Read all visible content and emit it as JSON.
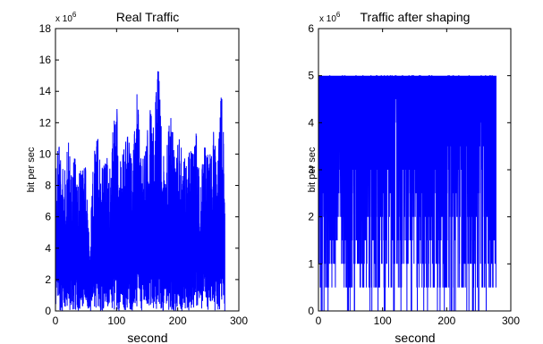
{
  "chart_data": [
    {
      "type": "line",
      "title": "Real Traffic",
      "xlabel": "second",
      "ylabel": "bit per sec",
      "y_multiplier": "x 10",
      "y_multiplier_exp": "6",
      "xlim": [
        0,
        300
      ],
      "ylim": [
        0,
        18
      ],
      "xticks": [
        "0",
        "100",
        "200",
        "300"
      ],
      "yticks": [
        "0",
        "2",
        "4",
        "6",
        "8",
        "10",
        "12",
        "14",
        "16",
        "18"
      ],
      "grid": false,
      "color": "#0000ff",
      "series": [
        {
          "x": [
            0,
            7,
            14,
            21,
            28,
            35,
            42,
            49,
            56,
            63,
            70,
            77,
            84,
            91,
            98,
            105,
            112,
            119,
            126,
            133,
            140,
            147,
            154,
            161,
            168,
            175,
            182,
            189,
            196,
            203,
            210,
            217,
            224,
            231,
            238,
            245,
            252,
            259,
            266,
            273,
            277
          ],
          "peaks": [
            10.2,
            10.5,
            8.5,
            10.8,
            9.5,
            10.0,
            8.8,
            9.2,
            4.0,
            10.5,
            11.0,
            9.0,
            9.8,
            9.0,
            15.0,
            9.5,
            10.5,
            11.2,
            9.0,
            14.5,
            9.5,
            10.0,
            13.0,
            11.5,
            16.0,
            10.0,
            11.0,
            12.5,
            10.0,
            11.0,
            9.5,
            10.5,
            10.0,
            11.5,
            8.5,
            11.0,
            10.0,
            11.5,
            10.0,
            15.3,
            8.0
          ]
        }
      ]
    },
    {
      "type": "line",
      "title": "Traffic after shaping",
      "xlabel": "second",
      "ylabel": "bit per sec",
      "y_multiplier": "x 10",
      "y_multiplier_exp": "6",
      "xlim": [
        0,
        300
      ],
      "ylim": [
        0,
        6
      ],
      "xticks": [
        "0",
        "100",
        "200",
        "300"
      ],
      "yticks": [
        "0",
        "1",
        "2",
        "3",
        "4",
        "5",
        "6"
      ],
      "grid": false,
      "color": "#0000ff",
      "series": [
        {
          "x_range": [
            0,
            277
          ],
          "max_value": 5.0,
          "levels": [
            0.5,
            1.0,
            1.5,
            2.0,
            2.5,
            3.0,
            3.5,
            4.0,
            4.5,
            5.0
          ]
        }
      ]
    }
  ]
}
